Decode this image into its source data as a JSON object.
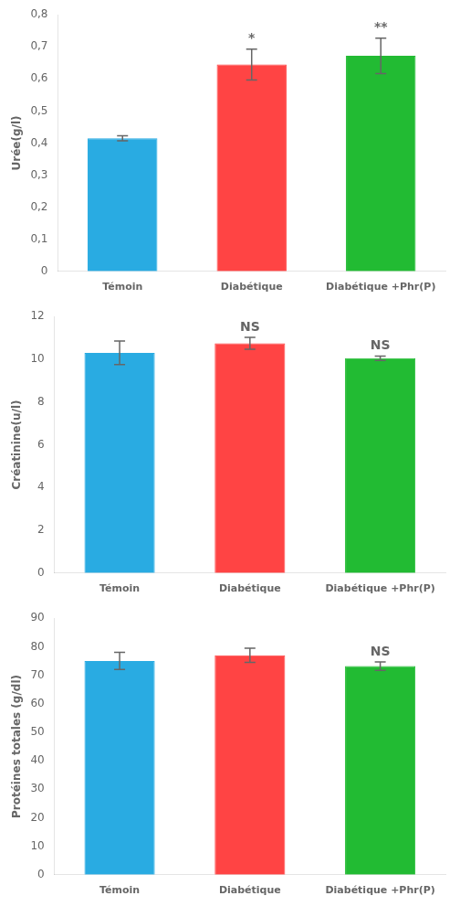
{
  "chart_data": [
    {
      "type": "bar",
      "ylabel": "Urée(g/l)",
      "categories": [
        "Témoin",
        "Diabétique",
        "Diabétique +Phr(P)"
      ],
      "values": [
        0.415,
        0.645,
        0.672
      ],
      "errors": [
        0.008,
        0.048,
        0.055
      ],
      "annotations": [
        null,
        "*",
        "**"
      ],
      "colors": [
        "#29ABE2",
        "#FF4444",
        "#22BB33"
      ],
      "ylim": [
        0,
        0.8
      ],
      "yticks": [
        0,
        {
          "value": 0.1,
          "label": "0,1"
        },
        {
          "value": 0.2,
          "label": "0,2"
        },
        {
          "value": 0.3,
          "label": "0,3"
        },
        {
          "value": 0.4,
          "label": "0,4"
        },
        {
          "value": 0.5,
          "label": "0,5"
        },
        {
          "value": 0.6,
          "label": "0,6"
        },
        {
          "value": 0.7,
          "label": "0,7"
        },
        {
          "value": 0.8,
          "label": "0,8"
        }
      ],
      "grid": false
    },
    {
      "type": "bar",
      "ylabel": "Créatinine(u/l)",
      "categories": [
        "Témoin",
        "Diabétique",
        "Diabétique +Phr(P)"
      ],
      "values": [
        10.3,
        10.75,
        10.05
      ],
      "errors": [
        0.55,
        0.28,
        0.1
      ],
      "annotations": [
        null,
        "NS",
        "NS"
      ],
      "colors": [
        "#29ABE2",
        "#FF4444",
        "#22BB33"
      ],
      "ylim": [
        0,
        12
      ],
      "yticks": [
        0,
        2,
        4,
        6,
        8,
        10,
        12
      ],
      "grid": false
    },
    {
      "type": "bar",
      "ylabel": "Protéines totales (g/dl)",
      "categories": [
        "Témoin",
        "Diabétique",
        "Diabétique +Phr(P)"
      ],
      "values": [
        75.0,
        77.0,
        73.2
      ],
      "errors": [
        3.0,
        2.5,
        1.5
      ],
      "annotations": [
        null,
        null,
        "NS"
      ],
      "colors": [
        "#29ABE2",
        "#FF4444",
        "#22BB33"
      ],
      "ylim": [
        0,
        90
      ],
      "yticks": [
        0,
        10,
        20,
        30,
        40,
        50,
        60,
        70,
        80,
        90
      ],
      "grid": false
    }
  ]
}
